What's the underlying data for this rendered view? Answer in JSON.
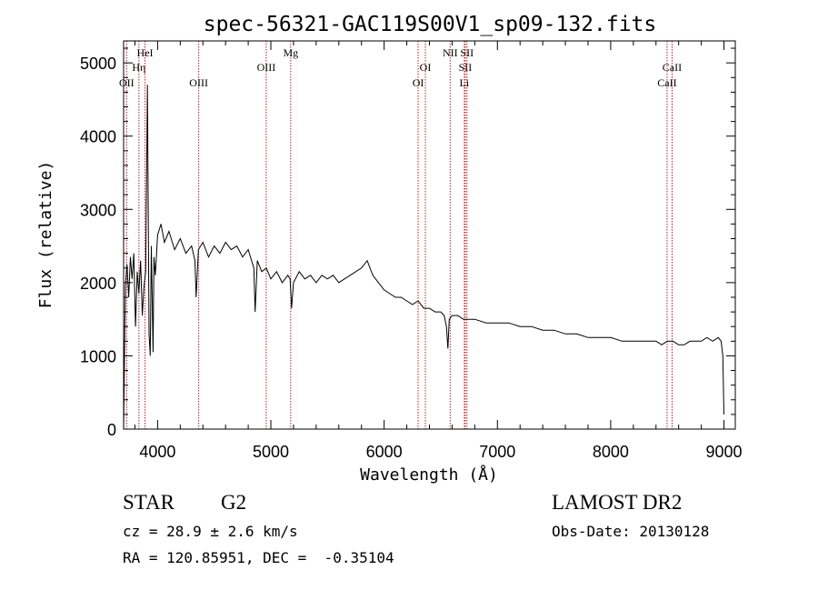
{
  "chart_data": {
    "type": "line",
    "title": "spec-56321-GAC119S00V1_sp09-132.fits",
    "xlabel": "Wavelength (Å)",
    "ylabel": "Flux (relative)",
    "xlim": [
      3700,
      9100
    ],
    "ylim": [
      0,
      5300
    ],
    "xticks": [
      "4000",
      "5000",
      "6000",
      "7000",
      "8000",
      "9000"
    ],
    "yticks": [
      "0",
      "1000",
      "2000",
      "3000",
      "4000",
      "5000"
    ],
    "grid": false,
    "series": [
      {
        "x": [
          3700,
          3715,
          3730,
          3745,
          3760,
          3775,
          3790,
          3805,
          3820,
          3835,
          3850,
          3865,
          3880,
          3895,
          3910,
          3925,
          3935,
          3945,
          3960,
          3968,
          3980,
          4000,
          4030,
          4060,
          4100,
          4150,
          4200,
          4250,
          4300,
          4330,
          4340,
          4360,
          4400,
          4450,
          4500,
          4550,
          4600,
          4650,
          4700,
          4750,
          4800,
          4850,
          4861,
          4880,
          4920,
          4960,
          5000,
          5050,
          5100,
          5150,
          5170,
          5183,
          5200,
          5250,
          5300,
          5350,
          5400,
          5450,
          5500,
          5550,
          5600,
          5650,
          5700,
          5750,
          5800,
          5850,
          5900,
          5950,
          6000,
          6050,
          6100,
          6150,
          6200,
          6250,
          6300,
          6350,
          6400,
          6450,
          6500,
          6530,
          6550,
          6563,
          6575,
          6600,
          6650,
          6700,
          6800,
          6900,
          7000,
          7100,
          7200,
          7300,
          7400,
          7500,
          7600,
          7700,
          7800,
          7900,
          8000,
          8100,
          8200,
          8300,
          8400,
          8450,
          8500,
          8550,
          8600,
          8650,
          8700,
          8750,
          8800,
          8850,
          8900,
          8950,
          8975,
          8990,
          9000
        ],
        "y": [
          0,
          1950,
          2250,
          1800,
          2350,
          2050,
          2400,
          1400,
          2150,
          1850,
          2300,
          1550,
          1950,
          2150,
          4700,
          1300,
          1000,
          2500,
          1050,
          2350,
          2100,
          2650,
          2800,
          2550,
          2700,
          2450,
          2600,
          2400,
          2500,
          2300,
          1800,
          2450,
          2550,
          2350,
          2500,
          2400,
          2550,
          2450,
          2500,
          2350,
          2450,
          2200,
          1600,
          2300,
          2150,
          2200,
          2050,
          2150,
          2000,
          2100,
          2050,
          1650,
          2000,
          2150,
          2050,
          2100,
          2000,
          2100,
          2050,
          2100,
          2000,
          2050,
          2100,
          2150,
          2200,
          2300,
          2100,
          2000,
          1900,
          1850,
          1800,
          1800,
          1750,
          1700,
          1750,
          1650,
          1650,
          1600,
          1600,
          1550,
          1400,
          1100,
          1500,
          1550,
          1550,
          1500,
          1500,
          1450,
          1450,
          1450,
          1400,
          1400,
          1350,
          1350,
          1300,
          1300,
          1250,
          1250,
          1250,
          1200,
          1200,
          1200,
          1200,
          1150,
          1200,
          1200,
          1150,
          1150,
          1200,
          1200,
          1200,
          1250,
          1200,
          1250,
          1200,
          1000,
          200
        ]
      }
    ],
    "lines": [
      {
        "label": "OII",
        "x": 3727,
        "row": 3
      },
      {
        "label": "Hη",
        "x": 3835,
        "row": 2
      },
      {
        "label": "HeI",
        "x": 3889,
        "row": 1
      },
      {
        "label": "OIII",
        "x": 4363,
        "row": 3
      },
      {
        "label": "OIII",
        "x": 4959,
        "row": 2
      },
      {
        "label": "Mg",
        "x": 5175,
        "row": 1
      },
      {
        "label": "OI",
        "x": 6300,
        "row": 3
      },
      {
        "label": "OI",
        "x": 6364,
        "row": 2
      },
      {
        "label": "NII",
        "x": 6583,
        "row": 1
      },
      {
        "label": "SII",
        "x": 6716,
        "row": 2
      },
      {
        "label": "SII",
        "x": 6731,
        "row": 1
      },
      {
        "label": "Li",
        "x": 6708,
        "row": 3
      },
      {
        "label": "CaII",
        "x": 8498,
        "row": 3
      },
      {
        "label": "CaII",
        "x": 8542,
        "row": 2
      }
    ]
  },
  "info": {
    "class_text": "STAR",
    "subclass_text": "G2",
    "cz_text": "cz = 28.9 ± 2.6 km/s",
    "coords_text": "RA = 120.85951, DEC =  -0.35104",
    "survey_text": "LAMOST DR2",
    "obsdate_text": "Obs-Date: 20130128"
  },
  "colors": {
    "axis": "#000000",
    "spectrum": "#000000",
    "marker_lines": "#b22222"
  }
}
